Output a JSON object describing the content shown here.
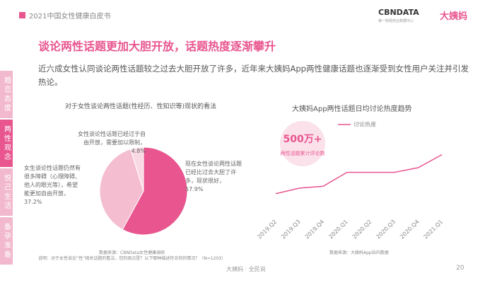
{
  "header": {
    "title": "2021中国女性健康白皮书",
    "logo": "CBNDATA",
    "logo_sub": "第一财经商业数据中心",
    "partner": "大姨妈"
  },
  "title": "谈论两性话题更加大胆开放，话题热度逐渐攀升",
  "intro": "近六成女性认同谈论两性话题较之过去大胆开放了许多，近年来大姨妈App两性健康话题也逐渐受到女性用户关注并引发热论。",
  "sidebar": {
    "tabs": [
      "婚恋态度",
      "两性观念",
      "悦己生活",
      "备孕准备"
    ],
    "active": 1
  },
  "chart_data": [
    {
      "type": "pie",
      "title": "对于女性谈论两性话题(性经历、性知识等)现状的看法",
      "categories": [
        "现在女性谈论两性话题已经比过去大胆了许多，现状很好，",
        "女生谈论性话题仍然有很多障碍（心理障碍、他人的眼光等），希望能更加自由开放，",
        "女性谈论性话题已经过于自由开放，需要加以限制，"
      ],
      "values": [
        57.9,
        37.2,
        4.8
      ],
      "value_labels": [
        "57.9%",
        "37.2%",
        "4.8%"
      ],
      "colors": [
        "#e8558f",
        "#f4bdd0",
        "#f8d9e4"
      ],
      "source": "数据来源：CBNData女性健康调研",
      "note": "说明：对于女性谈论“性”相关话题的看法，您的观点是？以下哪种描述符合你的情况？（N=1203）"
    },
    {
      "type": "line",
      "title": "大姨妈App两性话题日均讨论热度趋势",
      "categories": [
        "2019.Q2",
        "2019.Q3",
        "2019.Q4",
        "2020.Q1",
        "2020.Q2",
        "2020.Q3",
        "2020.Q4",
        "2021.Q1"
      ],
      "series": [
        {
          "name": "讨论热度",
          "color": "#e8558f",
          "values": [
            20,
            26,
            28,
            43,
            43,
            43,
            48,
            62
          ]
        }
      ],
      "ylim": [
        0,
        80
      ],
      "annotation": {
        "value": "500万+",
        "label": "两性话题累计评论数"
      },
      "source": "数据来源：大姨妈App站内数据"
    }
  ],
  "footer": {
    "text": "大姨妈 · 全民说",
    "page": "20"
  }
}
